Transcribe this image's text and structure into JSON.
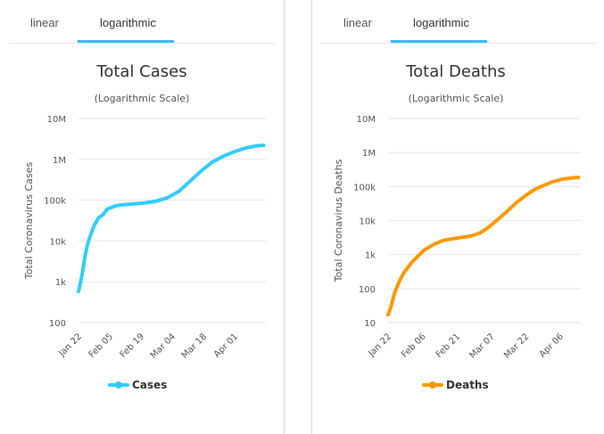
{
  "tabs": {
    "left": {
      "linear": "linear",
      "logarithmic": "logarithmic",
      "active": "logarithmic"
    },
    "right": {
      "linear": "linear",
      "logarithmic": "logarithmic",
      "active": "logarithmic"
    }
  },
  "colors": {
    "tab_underline": "#3bb9f5",
    "cases": "#33ccff",
    "deaths": "#ff9900",
    "grid": "#e6e6e6"
  },
  "chart_data": [
    {
      "type": "line",
      "title": "Total Cases",
      "subtitle": "(Logarithmic Scale)",
      "ylabel": "Total Coronavirus Cases",
      "xlabel": "",
      "log_scale": true,
      "ylim": [
        100,
        10000000
      ],
      "y_ticks": [
        100,
        1000,
        10000,
        100000,
        1000000,
        10000000
      ],
      "y_tick_labels": [
        "100",
        "1k",
        "10k",
        "100k",
        "1M",
        "10M"
      ],
      "x_tick_labels": [
        "Jan 22",
        "Feb 05",
        "Feb 19",
        "Mar 04",
        "Mar 18",
        "Apr 01"
      ],
      "x_tick_days": [
        0,
        14,
        28,
        42,
        56,
        70
      ],
      "x_range_days": [
        0,
        84
      ],
      "legend": "bottom-center",
      "grid": true,
      "series": [
        {
          "name": "Cases",
          "color": "#33ccff",
          "x": [
            0,
            1,
            2,
            3,
            4,
            5,
            6,
            7,
            9,
            11,
            13,
            15,
            16,
            17,
            18,
            21,
            25,
            30,
            35,
            40,
            45,
            50,
            55,
            60,
            65,
            70,
            75,
            80,
            83
          ],
          "values": [
            580,
            1000,
            2000,
            4500,
            8000,
            12000,
            17000,
            24000,
            37000,
            44000,
            61000,
            67000,
            71000,
            73000,
            75000,
            78000,
            81000,
            86000,
            95000,
            115000,
            165000,
            290000,
            520000,
            860000,
            1200000,
            1550000,
            1900000,
            2150000,
            2200000
          ]
        }
      ]
    },
    {
      "type": "line",
      "title": "Total Deaths",
      "subtitle": "(Logarithmic Scale)",
      "ylabel": "Total Coronavirus Deaths",
      "xlabel": "",
      "log_scale": true,
      "ylim": [
        10,
        10000000
      ],
      "y_ticks": [
        10,
        100,
        1000,
        10000,
        100000,
        1000000,
        10000000
      ],
      "y_tick_labels": [
        "10",
        "100",
        "1k",
        "10k",
        "100k",
        "1M",
        "10M"
      ],
      "x_tick_labels": [
        "Jan 22",
        "Feb 06",
        "Feb 21",
        "Mar 07",
        "Mar 22",
        "Apr 06"
      ],
      "x_tick_days": [
        0,
        15,
        30,
        45,
        60,
        75
      ],
      "x_range_days": [
        0,
        84
      ],
      "legend": "bottom-center",
      "grid": true,
      "series": [
        {
          "name": "Deaths",
          "color": "#ff9900",
          "x": [
            0,
            1,
            3,
            5,
            7,
            10,
            13,
            16,
            20,
            24,
            28,
            32,
            36,
            40,
            44,
            48,
            52,
            56,
            60,
            64,
            68,
            72,
            76,
            80,
            83
          ],
          "values": [
            17,
            26,
            80,
            170,
            300,
            560,
            900,
            1400,
            2000,
            2600,
            2900,
            3200,
            3500,
            4300,
            6500,
            11000,
            19000,
            34000,
            55000,
            83000,
            110000,
            140000,
            165000,
            180000,
            185000
          ]
        }
      ]
    }
  ]
}
